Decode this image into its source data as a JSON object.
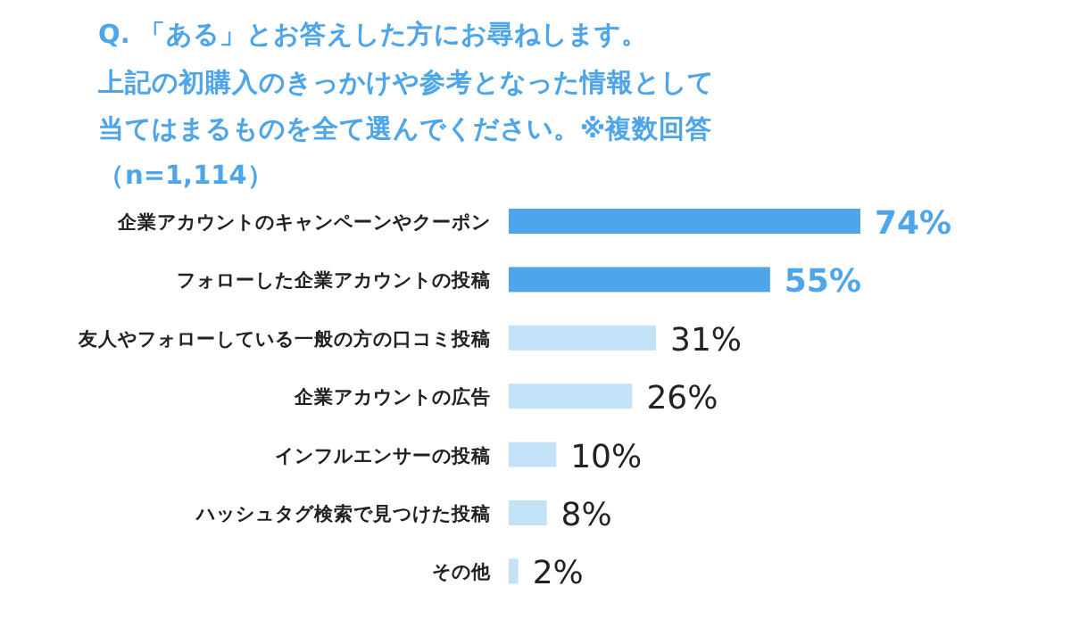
{
  "chart_data": {
    "type": "bar",
    "orientation": "horizontal",
    "title": "Q. 「ある」とお答えした方にお尋ねします。",
    "subtitle": "上記の初購入のきっかけや参考となった情報として当てはまるものを全て選んでください。※複数回答（n=1,114）",
    "categories": [
      "企業アカウントのキャンペーンやクーポン",
      "フォローした企業アカウントの投稿",
      "友人やフォローしている一般の方の口コミ投稿",
      "企業アカウントの広告",
      "インフルエンサーの投稿",
      "ハッシュタグ検索で見つけた投稿",
      "その他"
    ],
    "values": [
      74,
      55,
      31,
      26,
      10,
      8,
      2
    ],
    "colors": [
      "#4ea5e9",
      "#4ea5e9",
      "#c3e1f7",
      "#c3e1f7",
      "#c3e1f7",
      "#c3e1f7",
      "#c3e1f7"
    ],
    "value_labels": [
      "74%",
      "55%",
      "31%",
      "26%",
      "10%",
      "8%",
      "2%"
    ],
    "xlim": [
      0,
      74
    ]
  }
}
